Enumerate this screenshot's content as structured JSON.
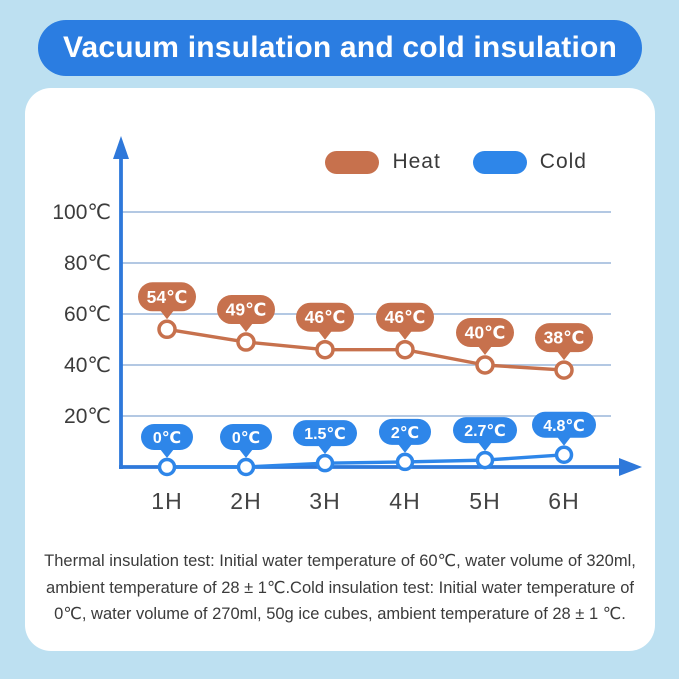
{
  "title": "Vacuum insulation and cold insulation",
  "colors": {
    "page_background": "#BDE0F1",
    "title_pill": "#2B7DE1",
    "card": "#FFFFFF",
    "axis": "#2E78DA",
    "gridline": "#A8C1DF",
    "heat": "#C7714D",
    "cold": "#2E86E9",
    "tick_text": "#3C3C3C"
  },
  "legend": [
    {
      "label": "Heat",
      "color": "#C7714D"
    },
    {
      "label": "Cold",
      "color": "#2E86E9"
    }
  ],
  "footnote": "Thermal insulation test: Initial water temperature of 60℃, water volume of 320ml, ambient temperature of 28 ± 1℃.Cold insulation test: Initial water temperature of 0℃, water volume of 270ml, 50g ice cubes, ambient temperature of 28 ± 1 ℃.",
  "chart_data": {
    "type": "line",
    "categories": [
      "1H",
      "2H",
      "3H",
      "4H",
      "5H",
      "6H"
    ],
    "series": [
      {
        "name": "Heat",
        "color": "#C7714D",
        "values": [
          54,
          49,
          46,
          46,
          40,
          38
        ],
        "labels": [
          "54℃",
          "49℃",
          "46℃",
          "46℃",
          "40℃",
          "38℃"
        ]
      },
      {
        "name": "Cold",
        "color": "#2E86E9",
        "values": [
          0,
          0,
          1.5,
          2,
          2.7,
          4.8
        ],
        "labels": [
          "0℃",
          "0℃",
          "1.5℃",
          "2℃",
          "2.7℃",
          "4.8℃"
        ]
      }
    ],
    "ytick_labels": [
      "100℃",
      "80℃",
      "60℃",
      "40℃",
      "20℃"
    ],
    "ytick_values": [
      100,
      80,
      60,
      40,
      20
    ],
    "ylim": [
      0,
      110
    ],
    "xlabel": "",
    "ylabel": "",
    "grid": true,
    "legend_position": "top-right",
    "marker_style": "open-circle",
    "point_label_style": "speech-bubble"
  }
}
